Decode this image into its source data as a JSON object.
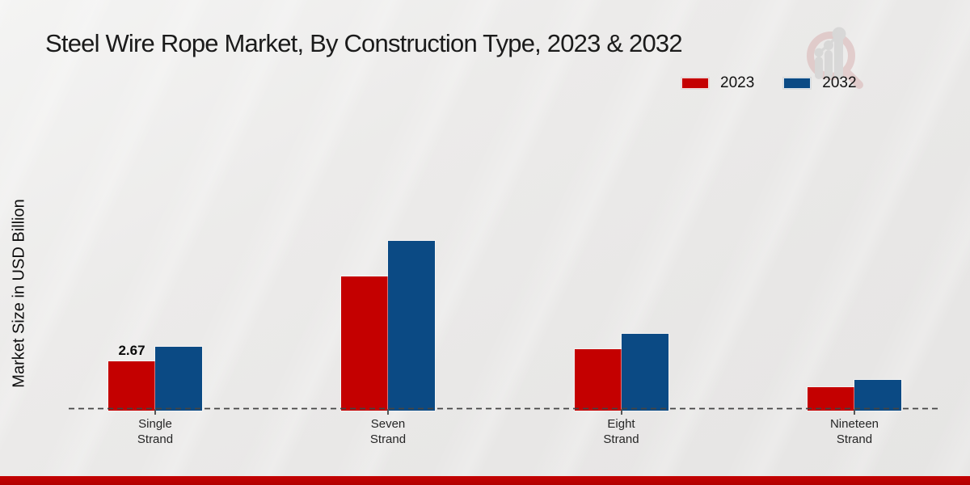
{
  "page": {
    "title": "Steel Wire Rope Market, By Construction Type, 2023 & 2032"
  },
  "legend": {
    "items": [
      {
        "label": "2023",
        "color": "#c40000"
      },
      {
        "label": "2032",
        "color": "#0b4a84"
      }
    ]
  },
  "watermark": {
    "name": "magnifier-bar-chart-logo",
    "ring_color": "#d9b3b3",
    "bars_color": "#c9c9c9"
  },
  "chart_data": {
    "type": "bar",
    "title": "Steel Wire Rope Market, By Construction Type, 2023 & 2032",
    "xlabel": "",
    "ylabel": "Market Size in USD Billion",
    "categories": [
      "Single Strand",
      "Seven Strand",
      "Eight Strand",
      "Nineteen Strand"
    ],
    "series": [
      {
        "name": "2023",
        "color": "#c40000",
        "values": [
          2.67,
          7.25,
          3.35,
          1.27
        ],
        "labels": [
          "2.67",
          null,
          null,
          null
        ]
      },
      {
        "name": "2032",
        "color": "#0b4a84",
        "values": [
          3.45,
          9.2,
          4.15,
          1.68
        ],
        "labels": [
          null,
          null,
          null,
          null
        ]
      }
    ],
    "ylim": [
      0,
      10
    ],
    "grid": false,
    "axis_style": "dashed-baseline-only",
    "legend_position": "top-right",
    "value_unit": "USD Billion"
  }
}
